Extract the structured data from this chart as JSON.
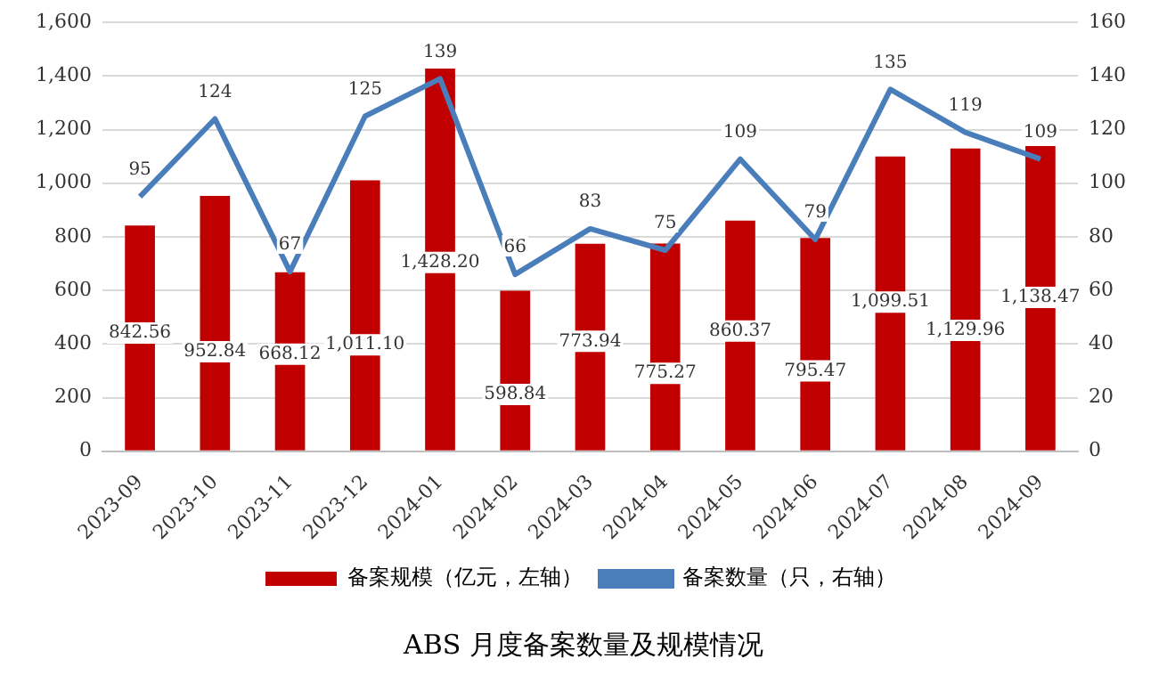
{
  "chart_data": {
    "type": "bar",
    "title": "ABS 月度备案数量及规模情况",
    "categories": [
      "2023-09",
      "2023-10",
      "2023-11",
      "2023-12",
      "2024-01",
      "2024-02",
      "2024-03",
      "2024-04",
      "2024-05",
      "2024-06",
      "2024-07",
      "2024-08",
      "2024-09"
    ],
    "series": [
      {
        "name": "备案规模（亿元，左轴）",
        "color": "#c00000",
        "values": [
          842.56,
          952.84,
          668.12,
          1011.1,
          1428.2,
          598.84,
          773.94,
          775.27,
          860.37,
          795.47,
          1099.51,
          1129.96,
          1138.47
        ],
        "value_labels": [
          "842.56",
          "952.84",
          "668.12",
          "1,011.10",
          "1,428.20",
          "598.84",
          "773.94",
          "775.27",
          "860.37",
          "795.47",
          "1,099.51",
          "1,129.96",
          "1,138.47"
        ]
      },
      {
        "name": "备案数量（只，右轴）",
        "type": "line",
        "axis": "y2",
        "color": "#4a7ebb",
        "values": [
          95,
          124,
          67,
          125,
          139,
          66,
          83,
          75,
          109,
          79,
          135,
          119,
          109
        ],
        "value_labels": [
          "95",
          "124",
          "67",
          "125",
          "139",
          "66",
          "83",
          "75",
          "109",
          "79",
          "135",
          "119",
          "109"
        ]
      }
    ],
    "ylim": [
      0,
      1600
    ],
    "yticks": [
      0,
      200,
      400,
      600,
      800,
      {
        "value": 1000,
        "label": "1,000"
      },
      {
        "value": 1200,
        "label": "1,200"
      },
      {
        "value": 1400,
        "label": "1,400"
      },
      {
        "value": 1600,
        "label": "1,600"
      }
    ],
    "y2lim": [
      0,
      160
    ],
    "y2ticks": [
      0,
      20,
      40,
      60,
      80,
      100,
      120,
      140,
      160
    ],
    "grid": "y",
    "legend": "bottom",
    "marker": "none",
    "line_style": "solid"
  }
}
